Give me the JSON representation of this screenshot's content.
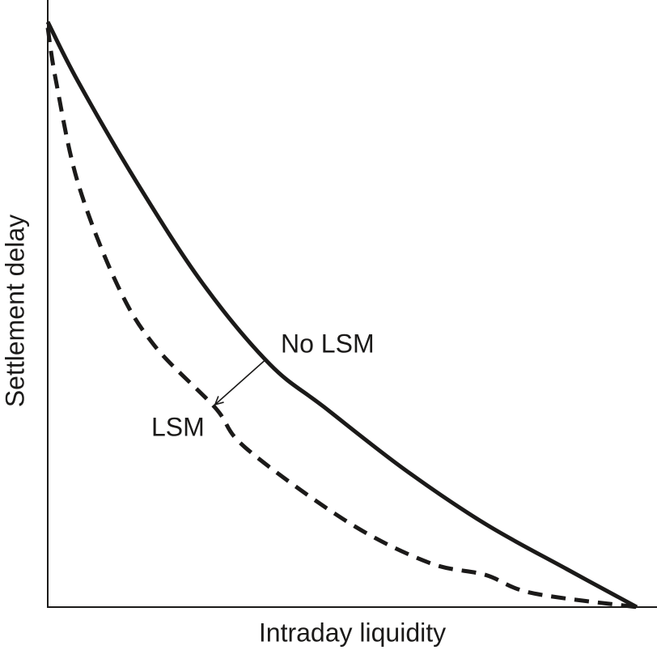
{
  "figure": {
    "background_color": "#ffffff",
    "ink_color": "#1b1a19"
  },
  "chart_data": {
    "type": "line",
    "title": "",
    "xlabel": "Intraday liquidity",
    "ylabel": "Settlement delay",
    "x_ticks": [],
    "y_ticks": [],
    "axes_numeric": false,
    "grid": false,
    "legend_position": "inline-curve-labels",
    "x_range_normalized": [
      0,
      1
    ],
    "y_range_normalized": [
      0,
      1
    ],
    "series": [
      {
        "name": "No LSM",
        "line_style": "solid",
        "stroke_width": 5,
        "dash_pattern": null,
        "points": [
          [
            0.0,
            1.0
          ],
          [
            0.051,
            0.899
          ],
          [
            0.151,
            0.726
          ],
          [
            0.263,
            0.553
          ],
          [
            0.377,
            0.415
          ],
          [
            0.469,
            0.342
          ],
          [
            0.606,
            0.235
          ],
          [
            0.743,
            0.142
          ],
          [
            0.881,
            0.065
          ],
          [
            1.0,
            0.0
          ]
        ]
      },
      {
        "name": "LSM",
        "line_style": "dashed",
        "stroke_width": 5,
        "dash_pattern": [
          18,
          11
        ],
        "points": [
          [
            0.0,
            0.99
          ],
          [
            0.014,
            0.899
          ],
          [
            0.051,
            0.726
          ],
          [
            0.117,
            0.553
          ],
          [
            0.181,
            0.447
          ],
          [
            0.284,
            0.341
          ],
          [
            0.336,
            0.272
          ],
          [
            0.51,
            0.145
          ],
          [
            0.647,
            0.076
          ],
          [
            0.743,
            0.055
          ],
          [
            0.822,
            0.024
          ],
          [
            1.0,
            0.0
          ]
        ]
      }
    ],
    "annotations": {
      "curve_labels": [
        {
          "text": "No LSM",
          "series": "No LSM",
          "at": [
            0.475,
            0.45
          ]
        },
        {
          "text": "LSM",
          "series": "LSM",
          "at": [
            0.221,
            0.307
          ]
        }
      ],
      "arrow": {
        "from": [
          0.369,
          0.422
        ],
        "to": [
          0.284,
          0.346
        ],
        "stroke_width": 1.6
      }
    }
  }
}
